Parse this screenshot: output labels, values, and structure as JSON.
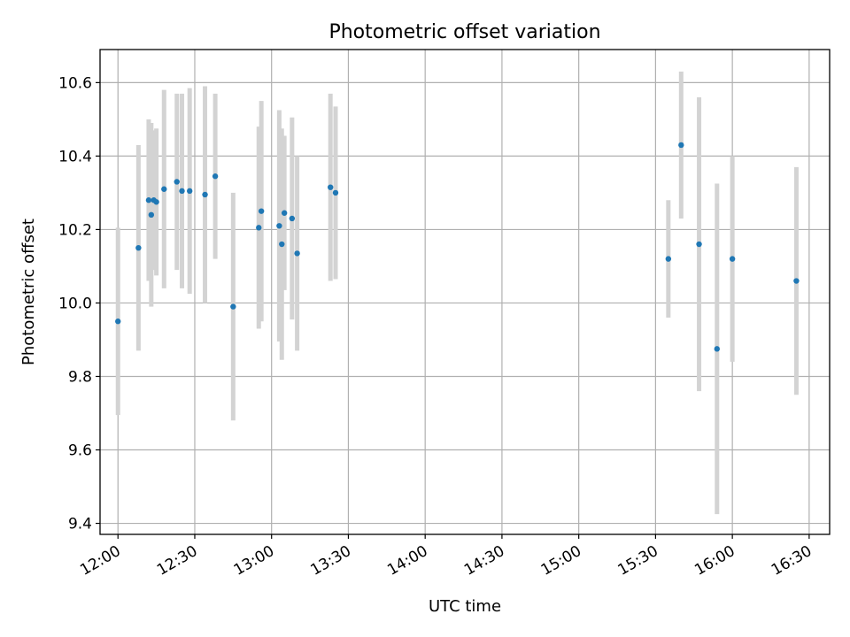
{
  "chart_data": {
    "type": "scatter",
    "title": "Photometric offset variation",
    "xlabel": "UTC time",
    "ylabel": "Photometric offset",
    "grid": true,
    "x_unit": "UTC time (HH:MM)",
    "xlim": [
      "11:53",
      "16:38"
    ],
    "ylim": [
      9.37,
      10.69
    ],
    "x_ticks": [
      "12:00",
      "12:30",
      "13:00",
      "13:30",
      "14:00",
      "14:30",
      "15:00",
      "15:30",
      "16:00",
      "16:30"
    ],
    "y_ticks": [
      9.4,
      9.6,
      9.8,
      10.0,
      10.2,
      10.4,
      10.6
    ],
    "marker_color": "#1f77b4",
    "errorbar_color": "#d3d3d3",
    "series": [
      {
        "points": [
          {
            "x": "12:00",
            "y": 9.95,
            "err": 0.255
          },
          {
            "x": "12:08",
            "y": 10.15,
            "err": 0.28
          },
          {
            "x": "12:12",
            "y": 10.28,
            "err": 0.22
          },
          {
            "x": "12:13",
            "y": 10.24,
            "err": 0.25
          },
          {
            "x": "12:14",
            "y": 10.28,
            "err": 0.19
          },
          {
            "x": "12:15",
            "y": 10.275,
            "err": 0.2
          },
          {
            "x": "12:18",
            "y": 10.31,
            "err": 0.27
          },
          {
            "x": "12:23",
            "y": 10.33,
            "err": 0.24
          },
          {
            "x": "12:25",
            "y": 10.305,
            "err": 0.265
          },
          {
            "x": "12:28",
            "y": 10.305,
            "err": 0.28
          },
          {
            "x": "12:34",
            "y": 10.295,
            "err": 0.295
          },
          {
            "x": "12:38",
            "y": 10.345,
            "err": 0.225
          },
          {
            "x": "12:45",
            "y": 9.99,
            "err": 0.31
          },
          {
            "x": "12:55",
            "y": 10.205,
            "err": 0.275
          },
          {
            "x": "12:56",
            "y": 10.25,
            "err": 0.3
          },
          {
            "x": "13:03",
            "y": 10.21,
            "err": 0.315
          },
          {
            "x": "13:04",
            "y": 10.16,
            "err": 0.315
          },
          {
            "x": "13:05",
            "y": 10.245,
            "err": 0.21
          },
          {
            "x": "13:08",
            "y": 10.23,
            "err": 0.275
          },
          {
            "x": "13:10",
            "y": 10.135,
            "err": 0.265
          },
          {
            "x": "13:23",
            "y": 10.315,
            "err": 0.255
          },
          {
            "x": "13:25",
            "y": 10.3,
            "err": 0.235
          },
          {
            "x": "15:35",
            "y": 10.12,
            "err": 0.16
          },
          {
            "x": "15:40",
            "y": 10.43,
            "err": 0.2
          },
          {
            "x": "15:47",
            "y": 10.16,
            "err": 0.4
          },
          {
            "x": "15:54",
            "y": 9.875,
            "err": 0.45
          },
          {
            "x": "16:00",
            "y": 10.12,
            "err": 0.28
          },
          {
            "x": "16:25",
            "y": 10.06,
            "err": 0.31
          }
        ]
      }
    ]
  }
}
